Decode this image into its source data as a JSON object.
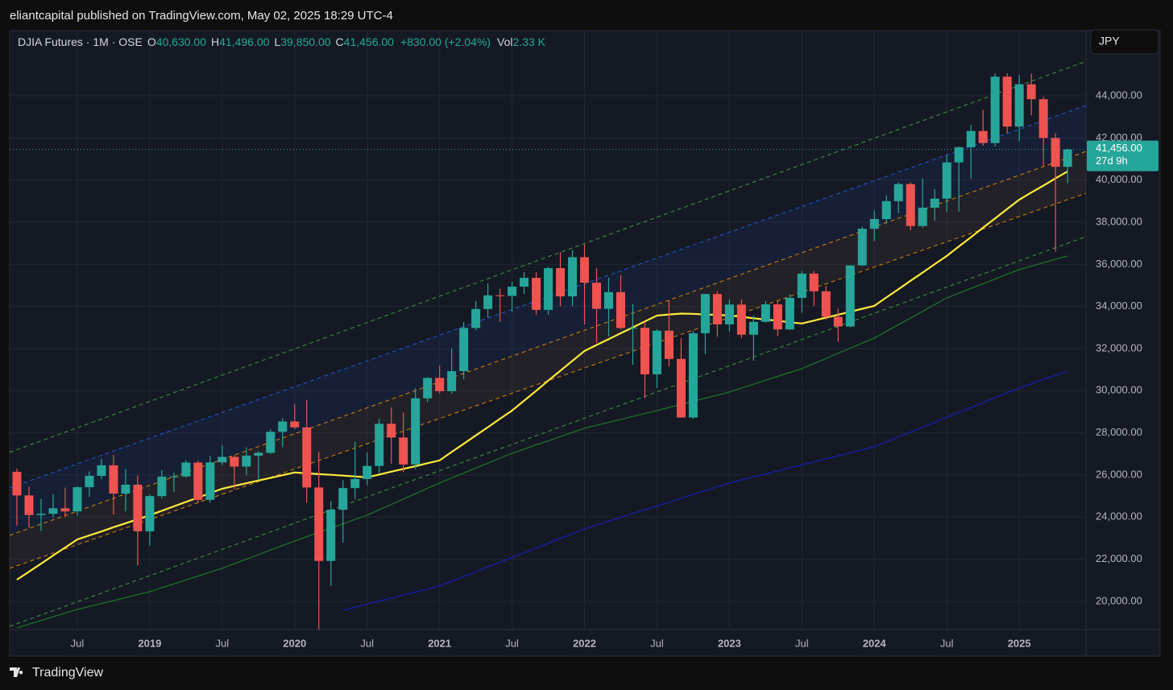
{
  "header": {
    "published": "eliantcapital published on TradingView.com, May 02, 2025 18:29 UTC-4",
    "currency": "JPY",
    "brand": "TradingView"
  },
  "chart_data": {
    "type": "candlestick",
    "title": "DJIA Futures · 1M · OSE",
    "legend": {
      "o_label": "O",
      "open": "40,630.00",
      "h_label": "H",
      "high": "41,496.00",
      "l_label": "L",
      "low": "39,850.00",
      "c_label": "C",
      "close": "41,456.00",
      "change": "+830.00 (+2.04%)",
      "vol_label": "Vol",
      "volume": "2.33 K"
    },
    "categories": [
      null,
      null,
      null,
      null,
      null,
      "Jul",
      null,
      null,
      null,
      null,
      null,
      "2019",
      null,
      null,
      null,
      null,
      null,
      "Jul",
      null,
      null,
      null,
      null,
      null,
      "2020",
      null,
      null,
      null,
      null,
      null,
      "Jul",
      null,
      null,
      null,
      null,
      null,
      "2021",
      null,
      null,
      null,
      null,
      null,
      "Jul",
      null,
      null,
      null,
      null,
      null,
      "2022",
      null,
      null,
      null,
      null,
      null,
      "Jul",
      null,
      null,
      null,
      null,
      null,
      "2023",
      null,
      null,
      null,
      null,
      null,
      "Jul",
      null,
      null,
      null,
      null,
      null,
      "2024",
      null,
      null,
      null,
      null,
      null,
      "Jul",
      null,
      null,
      null,
      null,
      null,
      "2025",
      null,
      null,
      null,
      null
    ],
    "open": [
      26150,
      25030,
      24100,
      24160,
      24420,
      24270,
      25420,
      25960,
      26460,
      25120,
      25540,
      23330,
      25000,
      25920,
      25930,
      26590,
      24820,
      26600,
      26860,
      26400,
      26920,
      27050,
      28050,
      28540,
      28260,
      25410,
      21920,
      24350,
      25380,
      25810,
      26430,
      28430,
      27780,
      26500,
      29640,
      30610,
      29980,
      30930,
      32980,
      33880,
      34530,
      34500,
      34940,
      35360,
      33840,
      35820,
      34480,
      36340,
      35130,
      33890,
      34680,
      32980,
      32990,
      30780,
      32850,
      31510,
      28730,
      32730,
      34590,
      33150,
      34090,
      32660,
      33270,
      34100,
      32910,
      34410,
      35560,
      34720,
      33510,
      33050,
      35950,
      37690,
      38150,
      39000,
      39810,
      37820,
      38690,
      39120,
      40840,
      41560,
      42330,
      41760,
      44910,
      42540,
      44550,
      43840,
      42000,
      40630
    ],
    "high": [
      26300,
      25450,
      24860,
      25090,
      25400,
      25470,
      26170,
      26770,
      26950,
      26280,
      25980,
      25080,
      26240,
      26110,
      26700,
      26690,
      26910,
      27400,
      26930,
      27310,
      27130,
      28170,
      28700,
      29370,
      29570,
      27100,
      24760,
      25760,
      27580,
      27070,
      28660,
      29200,
      28960,
      30120,
      30640,
      31190,
      32010,
      33260,
      34260,
      35090,
      34850,
      35170,
      35630,
      35630,
      35890,
      36570,
      36680,
      36950,
      35820,
      35370,
      35490,
      34120,
      33270,
      32910,
      34280,
      32500,
      32860,
      34600,
      34710,
      34340,
      34330,
      33570,
      34260,
      34260,
      34590,
      35680,
      35680,
      34980,
      33900,
      35960,
      37790,
      38560,
      39280,
      39890,
      39890,
      40080,
      39580,
      41200,
      41590,
      42630,
      43330,
      45070,
      45070,
      44990,
      45050,
      43950,
      42230,
      41496
    ],
    "low": [
      23600,
      23500,
      23340,
      23990,
      23990,
      24080,
      24970,
      25800,
      24120,
      24270,
      21710,
      22640,
      24880,
      25210,
      25880,
      24680,
      24680,
      26480,
      25340,
      25980,
      25740,
      27000,
      27320,
      28170,
      24680,
      18210,
      20740,
      22790,
      24840,
      25520,
      26080,
      26540,
      26140,
      26270,
      29460,
      29860,
      29860,
      30550,
      32870,
      33470,
      33270,
      33740,
      34600,
      33610,
      33610,
      34010,
      34010,
      33150,
      32270,
      32580,
      32910,
      31230,
      29650,
      30140,
      31150,
      28720,
      28660,
      31730,
      32570,
      32810,
      32500,
      31430,
      33240,
      32590,
      32900,
      33700,
      34030,
      33380,
      32330,
      33020,
      35920,
      37120,
      37940,
      38430,
      37610,
      37730,
      38080,
      38500,
      38500,
      40080,
      41630,
      41600,
      42200,
      41840,
      43080,
      40660,
      36610,
      39850
    ],
    "close": [
      25030,
      24100,
      24160,
      24420,
      24270,
      25420,
      25960,
      26460,
      25120,
      25540,
      23330,
      25000,
      25920,
      25930,
      26590,
      24820,
      26600,
      26860,
      26400,
      26920,
      27050,
      28050,
      28540,
      28260,
      25410,
      21920,
      24350,
      25380,
      25810,
      26430,
      28430,
      27780,
      26500,
      29640,
      30610,
      29980,
      30930,
      32980,
      33880,
      34530,
      34500,
      34940,
      35360,
      33840,
      35820,
      34480,
      36340,
      35130,
      33890,
      34680,
      32980,
      32990,
      30780,
      32850,
      31510,
      28730,
      32730,
      34590,
      33150,
      34090,
      32660,
      33270,
      34100,
      32910,
      34410,
      35560,
      34720,
      33510,
      33050,
      35950,
      37690,
      38150,
      39000,
      39810,
      37820,
      38690,
      39120,
      40840,
      41560,
      42330,
      41760,
      44910,
      42540,
      44550,
      43840,
      42000,
      40630,
      41456
    ],
    "up_color": "#26a69a",
    "down_color": "#ef5350",
    "last_price": {
      "value": 41456,
      "label": "41,456.00",
      "countdown": "27d 9h",
      "color": "#26a69a"
    },
    "ylim": [
      18660,
      45950
    ],
    "yticks": [
      {
        "value": 20000,
        "label": "20,000.00"
      },
      {
        "value": 22000,
        "label": "22,000.00"
      },
      {
        "value": 24000,
        "label": "24,000.00"
      },
      {
        "value": 26000,
        "label": "26,000.00"
      },
      {
        "value": 28000,
        "label": "28,000.00"
      },
      {
        "value": 30000,
        "label": "30,000.00"
      },
      {
        "value": 32000,
        "label": "32,000.00"
      },
      {
        "value": 34000,
        "label": "34,000.00"
      },
      {
        "value": 36000,
        "label": "36,000.00"
      },
      {
        "value": 38000,
        "label": "38,000.00"
      },
      {
        "value": 40000,
        "label": "40,000.00"
      },
      {
        "value": 42000,
        "label": "42,000.00"
      },
      {
        "value": 44000,
        "label": "44,000.00"
      }
    ],
    "moving_averages": [
      {
        "color": "#ffeb3b",
        "width": 2.2,
        "values": [
          21030,
          21410,
          21790,
          22180,
          22560,
          22940,
          23130,
          23320,
          23520,
          23710,
          23900,
          24090,
          24300,
          24510,
          24720,
          24930,
          25140,
          25350,
          25480,
          25610,
          25740,
          25860,
          25990,
          26120,
          26080,
          26040,
          26010,
          25970,
          25930,
          25890,
          26020,
          26160,
          26290,
          26420,
          26560,
          26690,
          27090,
          27480,
          27880,
          28270,
          28670,
          29060,
          29530,
          30000,
          30480,
          30950,
          31420,
          31890,
          32170,
          32450,
          32730,
          33010,
          33290,
          33570,
          33620,
          33660,
          33650,
          33620,
          33600,
          33570,
          33510,
          33440,
          33380,
          33320,
          33250,
          33190,
          33330,
          33470,
          33610,
          33750,
          33890,
          34030,
          34430,
          34820,
          35220,
          35610,
          36010,
          36400,
          36850,
          37290,
          37740,
          38180,
          38630,
          39070,
          39410,
          39740,
          40080,
          40410
        ]
      },
      {
        "color": "#1b7a2a",
        "width": 1.2,
        "values": [
          18740,
          18920,
          19090,
          19270,
          19440,
          19620,
          19760,
          19900,
          20040,
          20180,
          20320,
          20460,
          20650,
          20830,
          21020,
          21200,
          21390,
          21570,
          21790,
          22000,
          22220,
          22440,
          22650,
          22870,
          23070,
          23280,
          23480,
          23680,
          23890,
          24090,
          24350,
          24600,
          24860,
          25110,
          25370,
          25620,
          25860,
          26090,
          26330,
          26560,
          26800,
          27030,
          27230,
          27430,
          27620,
          27820,
          28020,
          28220,
          28360,
          28500,
          28640,
          28780,
          28920,
          29060,
          29210,
          29350,
          29500,
          29650,
          29790,
          29940,
          30130,
          30310,
          30500,
          30680,
          30870,
          31050,
          31290,
          31530,
          31780,
          32020,
          32260,
          32500,
          32820,
          33140,
          33450,
          33770,
          34090,
          34410,
          34630,
          34860,
          35080,
          35300,
          35530,
          35750,
          35910,
          36080,
          36240,
          36400
        ]
      },
      {
        "color": "#1a1aa6",
        "width": 1.4,
        "values": [
          null,
          null,
          null,
          null,
          null,
          null,
          null,
          null,
          null,
          null,
          null,
          null,
          null,
          null,
          null,
          null,
          null,
          null,
          null,
          null,
          null,
          null,
          null,
          null,
          null,
          null,
          null,
          19580,
          19720,
          19870,
          20010,
          20160,
          20300,
          20440,
          20590,
          20730,
          20960,
          21180,
          21410,
          21630,
          21860,
          22090,
          22310,
          22540,
          22760,
          22990,
          23210,
          23440,
          23620,
          23800,
          23990,
          24170,
          24350,
          24530,
          24710,
          24890,
          25080,
          25260,
          25440,
          25620,
          25760,
          25910,
          26050,
          26190,
          26340,
          26480,
          26620,
          26770,
          26910,
          27050,
          27200,
          27340,
          27570,
          27810,
          28040,
          28270,
          28500,
          28740,
          28970,
          29200,
          29430,
          29670,
          29900,
          30130,
          30330,
          30530,
          30730,
          30930
        ]
      }
    ],
    "channel": [
      {
        "color": "#4caf50",
        "values": [
          27200,
          45320
        ]
      },
      {
        "color": "#2962ff",
        "values": [
          25510,
          43230
        ]
      },
      {
        "color": "#ff9800",
        "values": [
          23260,
          41050
        ]
      },
      {
        "color": "#ff9800",
        "values": [
          21690,
          39070
        ]
      },
      {
        "color": "#4caf50",
        "values": [
          18940,
          37000
        ]
      }
    ],
    "grid": true
  }
}
